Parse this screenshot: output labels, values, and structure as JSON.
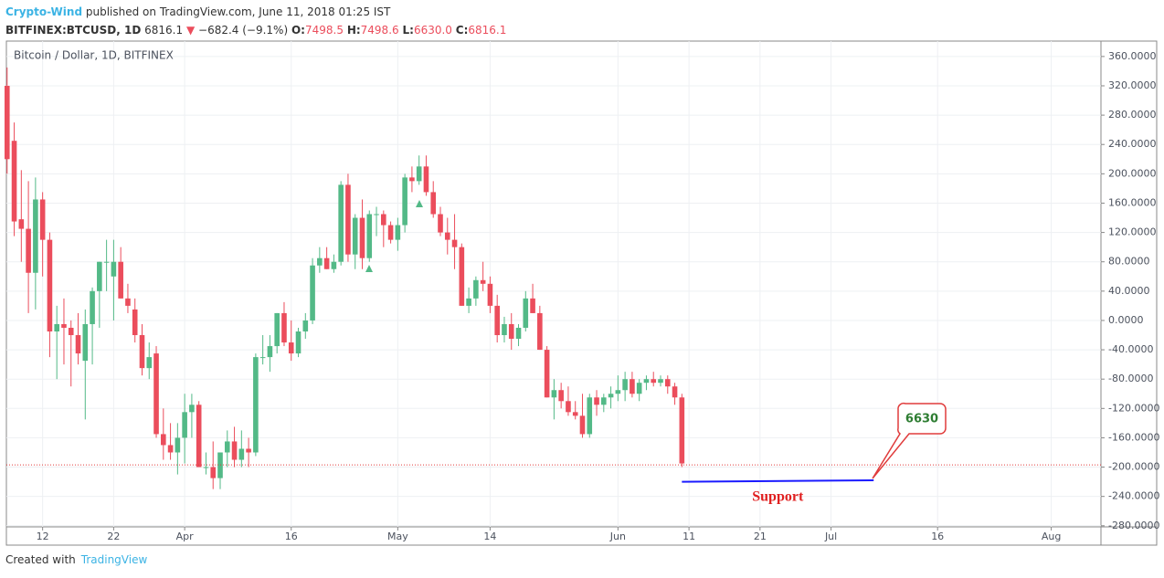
{
  "header": {
    "author": "Crypto-Wind",
    "published": "published on TradingView.com, June 11, 2018 01:25 IST",
    "symbol": "BITFINEX:BTCUSD, 1D",
    "price": "6816.1",
    "arrow": "▼",
    "change": "−682.4 (−9.1%)",
    "o_label": "O:",
    "o": "7498.5",
    "h_label": "H:",
    "h": "7498.6",
    "l_label": "L:",
    "l": "6630.0",
    "c_label": "C:",
    "c": "6816.1"
  },
  "footer": {
    "created": "Created with",
    "brand": "TradingView"
  },
  "chart_data": {
    "type": "candlestick",
    "legend": "Bitcoin / Dollar, 1D, BITFINEX",
    "up_color": "#53b987",
    "down_color": "#eb4d5c",
    "grid": true,
    "xlim": [
      -0.1,
      154
    ],
    "ylim": [
      -281.5,
      381
    ],
    "xticks": [
      {
        "value": 5,
        "label": "12"
      },
      {
        "value": 15,
        "label": "22"
      },
      {
        "value": 25,
        "label": "Apr"
      },
      {
        "value": 40,
        "label": "16"
      },
      {
        "value": 55,
        "label": "May"
      },
      {
        "value": 68,
        "label": "14"
      },
      {
        "value": 86,
        "label": "Jun"
      },
      {
        "value": 96,
        "label": "11"
      },
      {
        "value": 106,
        "label": "21"
      },
      {
        "value": 116,
        "label": "Jul"
      },
      {
        "value": 131,
        "label": "16"
      },
      {
        "value": 147,
        "label": "Aug"
      }
    ],
    "yticks": [
      {
        "value": 360,
        "label": "360.0000"
      },
      {
        "value": 320,
        "label": "320.0000"
      },
      {
        "value": 280,
        "label": "280.0000"
      },
      {
        "value": 240,
        "label": "240.0000"
      },
      {
        "value": 200,
        "label": "200.0000"
      },
      {
        "value": 160,
        "label": "160.0000"
      },
      {
        "value": 120,
        "label": "120.0000"
      },
      {
        "value": 80,
        "label": "80.0000"
      },
      {
        "value": 40,
        "label": "40.0000"
      },
      {
        "value": 0,
        "label": "0.0000"
      },
      {
        "value": -40,
        "label": "-40.0000"
      },
      {
        "value": -80,
        "label": "-80.0000"
      },
      {
        "value": -120,
        "label": "-120.0000"
      },
      {
        "value": -160,
        "label": "-160.0000"
      },
      {
        "value": -200,
        "label": "-200.0000"
      },
      {
        "value": -240,
        "label": "-240.0000"
      },
      {
        "value": -280,
        "label": "-280.0000"
      }
    ],
    "open": [
      320,
      245,
      138,
      125,
      65,
      165,
      110,
      -15,
      -5,
      -10,
      -20,
      -55,
      -5,
      40,
      80,
      60,
      80,
      30,
      15,
      -20,
      -65,
      -45,
      -155,
      -170,
      -180,
      -160,
      -125,
      -115,
      -200,
      -200,
      -215,
      -180,
      -165,
      -190,
      -175,
      -180,
      -50,
      -50,
      -35,
      10,
      -30,
      -45,
      -15,
      0,
      75,
      85,
      70,
      80,
      185,
      90,
      140,
      85,
      145,
      145,
      130,
      110,
      130,
      195,
      190,
      210,
      175,
      145,
      120,
      110,
      100,
      20,
      30,
      55,
      50,
      20,
      -20,
      -5,
      -25,
      -10,
      30,
      10,
      -40,
      -105,
      -95,
      -110,
      -125,
      -130,
      -155,
      -105,
      -115,
      -105,
      -100,
      -95,
      -80,
      -100,
      -85,
      -80,
      -85,
      -80,
      -90,
      -105
    ],
    "high": [
      345,
      270,
      205,
      190,
      195,
      175,
      120,
      20,
      30,
      0,
      10,
      15,
      45,
      80,
      110,
      110,
      100,
      50,
      30,
      -5,
      -30,
      -35,
      -120,
      -140,
      -140,
      -100,
      -100,
      -110,
      -180,
      -165,
      -180,
      -150,
      -145,
      -150,
      -160,
      -45,
      -20,
      -20,
      10,
      25,
      0,
      -10,
      10,
      85,
      100,
      100,
      90,
      190,
      200,
      145,
      165,
      150,
      155,
      150,
      135,
      140,
      200,
      210,
      225,
      225,
      190,
      155,
      140,
      145,
      105,
      45,
      60,
      80,
      60,
      35,
      5,
      10,
      -5,
      40,
      50,
      20,
      -35,
      -80,
      -85,
      -90,
      -110,
      -100,
      -100,
      -95,
      -100,
      -90,
      -75,
      -70,
      -70,
      -80,
      -75,
      -70,
      -75,
      -75,
      -85,
      -100
    ],
    "low": [
      200,
      115,
      80,
      10,
      15,
      60,
      -50,
      -80,
      -60,
      -90,
      -60,
      -135,
      -60,
      -10,
      40,
      0,
      30,
      10,
      -30,
      -75,
      -80,
      -160,
      -190,
      -190,
      -210,
      -195,
      -160,
      -200,
      -210,
      -230,
      -230,
      -200,
      -200,
      -200,
      -200,
      -185,
      -60,
      -70,
      -45,
      -35,
      -55,
      -50,
      -25,
      -5,
      65,
      70,
      65,
      75,
      80,
      70,
      70,
      80,
      115,
      100,
      105,
      95,
      120,
      175,
      185,
      170,
      140,
      115,
      90,
      70,
      20,
      10,
      20,
      40,
      10,
      -30,
      -30,
      -40,
      -35,
      -15,
      10,
      -40,
      -105,
      -135,
      -120,
      -130,
      -135,
      -160,
      -160,
      -130,
      -125,
      -120,
      -110,
      -110,
      -105,
      -110,
      -95,
      -90,
      -90,
      -100,
      -115,
      -200
    ],
    "close": [
      220,
      135,
      125,
      65,
      165,
      110,
      -15,
      -5,
      -10,
      -20,
      -45,
      -5,
      40,
      80,
      80,
      80,
      30,
      20,
      -20,
      -65,
      -50,
      -155,
      -170,
      -180,
      -160,
      -125,
      -115,
      -200,
      -200,
      -215,
      -180,
      -165,
      -190,
      -175,
      -180,
      -50,
      -50,
      -35,
      10,
      -30,
      -45,
      -15,
      0,
      75,
      85,
      70,
      80,
      185,
      90,
      140,
      85,
      145,
      145,
      130,
      110,
      130,
      195,
      190,
      210,
      175,
      145,
      120,
      110,
      100,
      20,
      30,
      55,
      50,
      20,
      -20,
      -5,
      -25,
      -10,
      30,
      10,
      -40,
      -105,
      -95,
      -110,
      -125,
      -130,
      -155,
      -105,
      -115,
      -105,
      -100,
      -95,
      -80,
      -100,
      -85,
      -80,
      -85,
      -80,
      -90,
      -105,
      -195
    ],
    "price_line": {
      "value": -197,
      "color": "#e03c3c"
    },
    "support": {
      "x": [
        95,
        122
      ],
      "y": [
        -220,
        -218
      ],
      "color": "#1a1aff",
      "label": "Support"
    },
    "callout": {
      "label": "6630"
    }
  }
}
